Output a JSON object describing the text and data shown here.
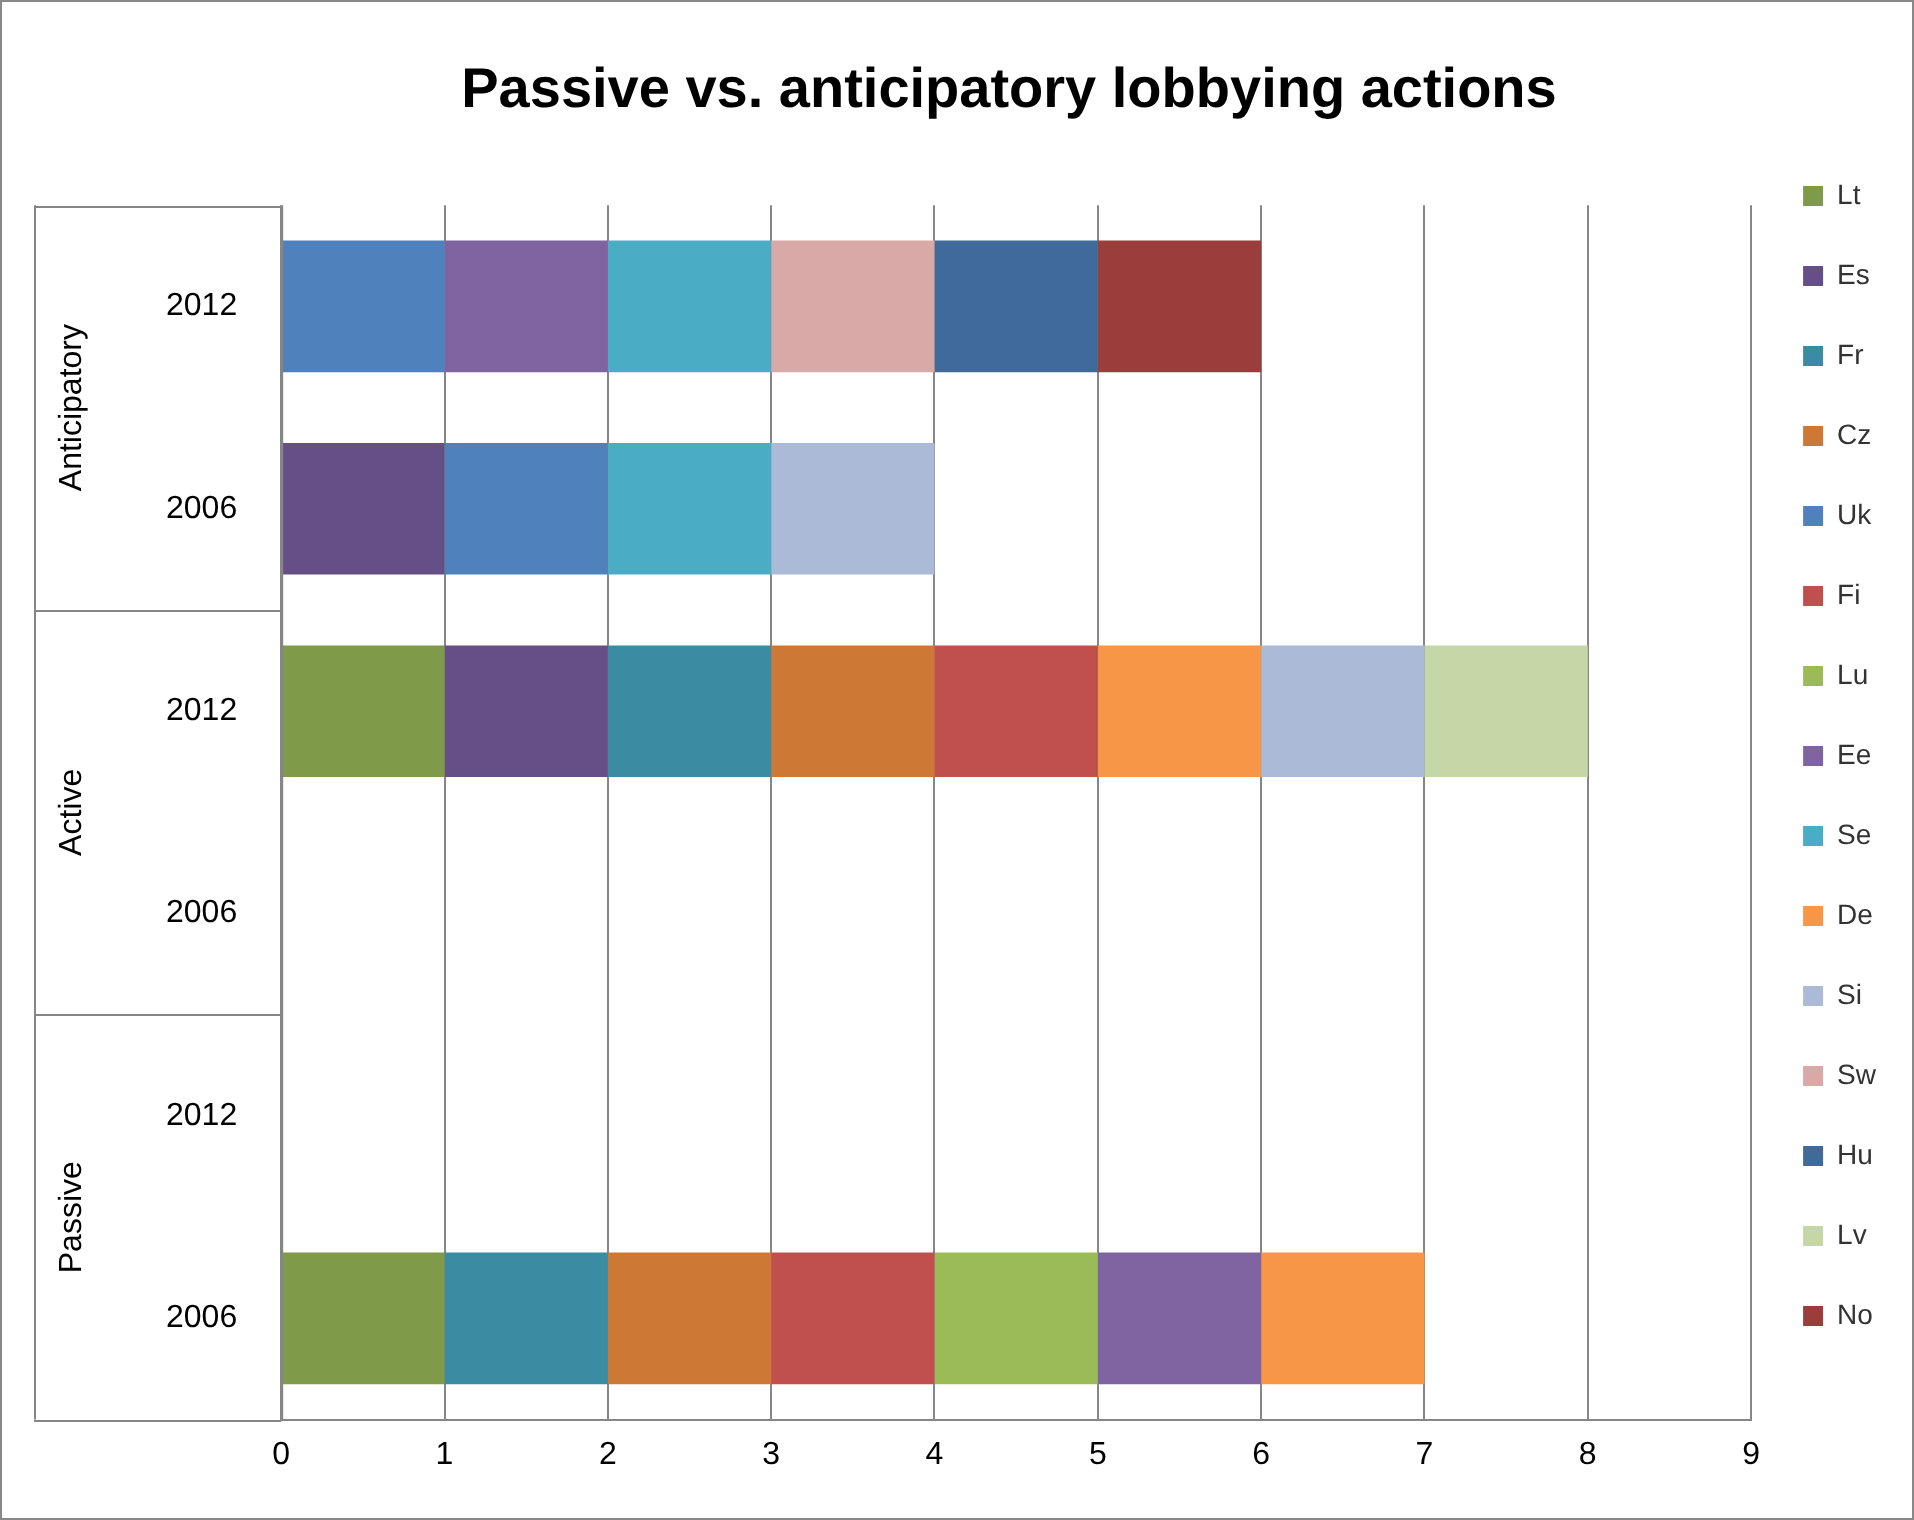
{
  "chart_data": {
    "type": "bar",
    "orientation": "horizontal",
    "stacked": true,
    "title": "Passive vs. anticipatory lobbying actions",
    "categories": [
      "2012",
      "2006",
      "2012",
      "2006",
      "2012",
      "2006"
    ],
    "annotations": [
      "Anticipatory",
      "Active",
      "Passive"
    ],
    "series": [
      {
        "name": "Lt",
        "color": "#7f9a48",
        "values": [
          null,
          null,
          1,
          null,
          null,
          1
        ]
      },
      {
        "name": "Es",
        "color": "#664f87",
        "values": [
          null,
          1,
          1,
          null,
          null,
          null
        ]
      },
      {
        "name": "Fr",
        "color": "#3b8ca3",
        "values": [
          null,
          null,
          1,
          null,
          null,
          1
        ]
      },
      {
        "name": "Cz",
        "color": "#cd7834",
        "values": [
          null,
          null,
          1,
          null,
          null,
          1
        ]
      },
      {
        "name": "Uk",
        "color": "#4f81bd",
        "values": [
          1,
          1,
          null,
          null,
          null,
          null
        ]
      },
      {
        "name": "Fi",
        "color": "#c0504d",
        "values": [
          null,
          null,
          1,
          null,
          null,
          1
        ]
      },
      {
        "name": "Lu",
        "color": "#9bbb59",
        "values": [
          null,
          null,
          null,
          null,
          null,
          1
        ]
      },
      {
        "name": "Ee",
        "color": "#8064a2",
        "values": [
          1,
          null,
          null,
          null,
          null,
          1
        ]
      },
      {
        "name": "Se",
        "color": "#4bacc6",
        "values": [
          1,
          1,
          null,
          null,
          null,
          null
        ]
      },
      {
        "name": "De",
        "color": "#f79646",
        "values": [
          null,
          null,
          1,
          null,
          null,
          1
        ]
      },
      {
        "name": "Si",
        "color": "#aabad7",
        "values": [
          null,
          1,
          1,
          null,
          null,
          null
        ]
      },
      {
        "name": "Sw",
        "color": "#d9a9a8",
        "values": [
          1,
          null,
          null,
          null,
          null,
          null
        ]
      },
      {
        "name": "Hu",
        "color": "#3f6a9a",
        "values": [
          1,
          null,
          null,
          null,
          null,
          null
        ]
      },
      {
        "name": "Lv",
        "color": "#c6d7a7",
        "values": [
          null,
          null,
          1,
          null,
          null,
          null
        ]
      },
      {
        "name": "No",
        "color": "#9b3d3b",
        "values": [
          1,
          null,
          null,
          null,
          null,
          null
        ]
      }
    ],
    "xlim": [
      0,
      9
    ],
    "xticks": [
      0,
      1,
      2,
      3,
      4,
      5,
      6,
      7,
      8,
      9
    ],
    "grid": "x",
    "legend": "right"
  }
}
